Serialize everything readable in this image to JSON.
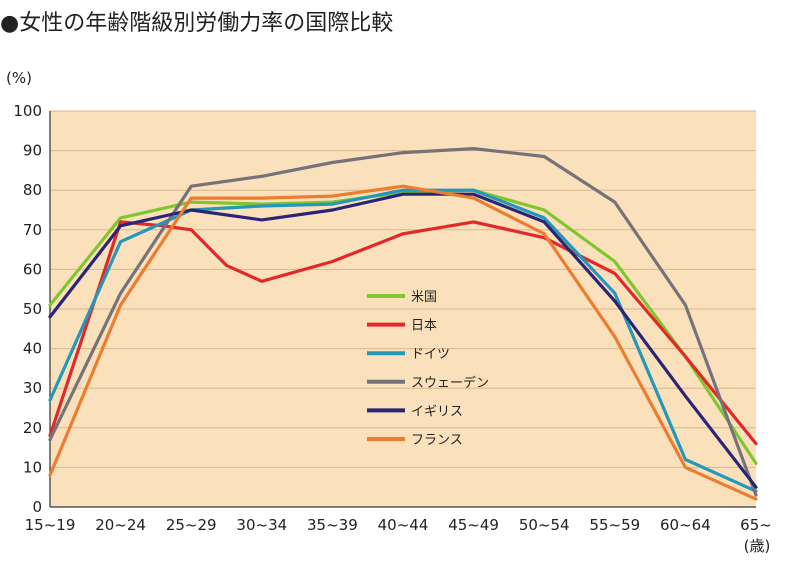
{
  "chart_data": {
    "type": "line",
    "title": "●女性の年齢階級別労働力率の国際比較",
    "ylabel": "(%)",
    "xunit": "(歳)",
    "ylim": [
      0,
      100
    ],
    "yticks": [
      0,
      10,
      20,
      30,
      40,
      50,
      60,
      70,
      80,
      90,
      100
    ],
    "categories": [
      "15~19",
      "20~24",
      "25~29",
      "30~34",
      "35~39",
      "40~44",
      "45~49",
      "50~54",
      "55~59",
      "60~64",
      "65~"
    ],
    "plot_background": "#fbe0bc",
    "legend_position": "center",
    "series": [
      {
        "name": "米国",
        "color": "#7fc62f",
        "points": [
          [
            0,
            51
          ],
          [
            1,
            73
          ],
          [
            2,
            77
          ],
          [
            3,
            76.5
          ],
          [
            4,
            77
          ],
          [
            5,
            79.5
          ],
          [
            6,
            80
          ],
          [
            7,
            75
          ],
          [
            8,
            62
          ],
          [
            9,
            38
          ],
          [
            10,
            11
          ]
        ]
      },
      {
        "name": "日本",
        "color": "#e22828",
        "points": [
          [
            0,
            18
          ],
          [
            1,
            72
          ],
          [
            1.6,
            71
          ],
          [
            2,
            70
          ],
          [
            2.5,
            61
          ],
          [
            3,
            57
          ],
          [
            4,
            62
          ],
          [
            5,
            69
          ],
          [
            6,
            72
          ],
          [
            7,
            68
          ],
          [
            8,
            59
          ],
          [
            9,
            38
          ],
          [
            10,
            16
          ]
        ]
      },
      {
        "name": "ドイツ",
        "color": "#2597b8",
        "points": [
          [
            0,
            27
          ],
          [
            1,
            67
          ],
          [
            2,
            75
          ],
          [
            3,
            76
          ],
          [
            4,
            76.5
          ],
          [
            5,
            80
          ],
          [
            6,
            80
          ],
          [
            7,
            73
          ],
          [
            8,
            54
          ],
          [
            9,
            12
          ],
          [
            10,
            4
          ]
        ]
      },
      {
        "name": "スウェーデン",
        "color": "#76727a",
        "points": [
          [
            0,
            17
          ],
          [
            1,
            54
          ],
          [
            2,
            81
          ],
          [
            3,
            83.5
          ],
          [
            4,
            87
          ],
          [
            5,
            89.5
          ],
          [
            6,
            90.5
          ],
          [
            7,
            88.5
          ],
          [
            8,
            77
          ],
          [
            9,
            51
          ],
          [
            10,
            3
          ]
        ]
      },
      {
        "name": "イギリス",
        "color": "#2a2576",
        "points": [
          [
            0,
            48
          ],
          [
            1,
            71
          ],
          [
            2,
            75
          ],
          [
            3,
            72.5
          ],
          [
            4,
            75
          ],
          [
            5,
            79
          ],
          [
            6,
            79
          ],
          [
            7,
            72
          ],
          [
            8,
            52
          ],
          [
            9,
            28
          ],
          [
            10,
            5
          ]
        ]
      },
      {
        "name": "フランス",
        "color": "#ec7d30",
        "points": [
          [
            0,
            8
          ],
          [
            1,
            51
          ],
          [
            2,
            78
          ],
          [
            3,
            78
          ],
          [
            4,
            78.5
          ],
          [
            5,
            81
          ],
          [
            6,
            78
          ],
          [
            7,
            69
          ],
          [
            8,
            43
          ],
          [
            9,
            10
          ],
          [
            10,
            2
          ]
        ]
      }
    ]
  }
}
